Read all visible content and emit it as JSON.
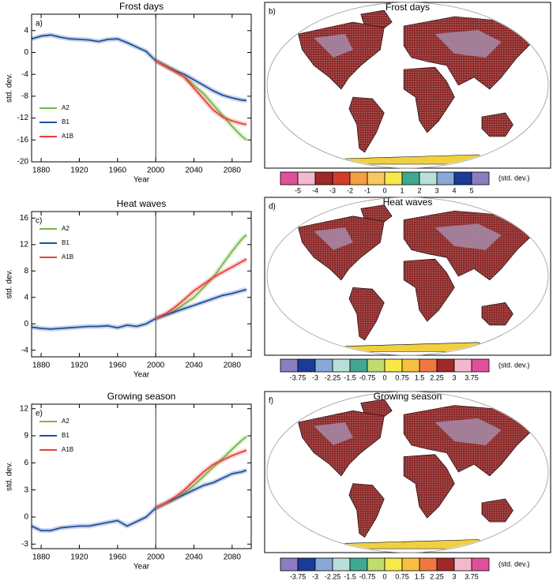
{
  "chart_data": [
    {
      "type": "line",
      "title": "Frost days",
      "panel_label": "a)",
      "ylabel": "std. dev.",
      "xlabel": "Year",
      "x": [
        1870,
        1880,
        1890,
        1900,
        1910,
        1920,
        1930,
        1940,
        1950,
        1960,
        1970,
        1980,
        1990,
        2000,
        2010,
        2020,
        2030,
        2040,
        2050,
        2060,
        2070,
        2080,
        2090,
        2095
      ],
      "xlim": [
        1870,
        2100
      ],
      "xticks": [
        1880,
        1920,
        1960,
        2000,
        2040,
        2080
      ],
      "ylim": [
        -20,
        7
      ],
      "yticks": [
        -20,
        -16,
        -12,
        -8,
        -4,
        0,
        4
      ],
      "vline": 2000,
      "legend": "lower left",
      "series": [
        {
          "name": "A2",
          "color": "#7ab648",
          "values": [
            null,
            null,
            null,
            null,
            null,
            null,
            null,
            null,
            null,
            null,
            null,
            null,
            null,
            -1.5,
            -2.3,
            -3.3,
            -4.5,
            -6,
            -7.5,
            -9.5,
            -11.5,
            -13.5,
            -15.3,
            -16
          ]
        },
        {
          "name": "B1",
          "color": "#1f4fa0",
          "values": [
            2.5,
            3,
            3.2,
            2.8,
            2.5,
            2.4,
            2.3,
            2,
            2.4,
            2.5,
            1.8,
            1,
            0.2,
            -1.5,
            -2.5,
            -3.3,
            -4,
            -5,
            -6,
            -7,
            -7.8,
            -8.3,
            -8.7,
            -8.8
          ]
        },
        {
          "name": "A1B",
          "color": "#e8403a",
          "values": [
            null,
            null,
            null,
            null,
            null,
            null,
            null,
            null,
            null,
            null,
            null,
            null,
            null,
            -1.5,
            -2.5,
            -3.5,
            -4.5,
            -6.5,
            -8.5,
            -10.5,
            -11.8,
            -12.5,
            -13,
            -13.2
          ]
        }
      ]
    },
    {
      "type": "map",
      "title": "Frost days",
      "panel_label": "b)",
      "unit": "(std. dev.)",
      "colorbar_ticks": [
        -5,
        -4,
        -3,
        -2,
        -1,
        0,
        1,
        2,
        3,
        4,
        5
      ],
      "colorbar_colors": [
        "#e0509a",
        "#f4b8cc",
        "#a02828",
        "#d23c2c",
        "#f4a040",
        "#f8c860",
        "#f8e848",
        "#40a890",
        "#b8e0d8",
        "#88a8d8",
        "#1a3c98",
        "#8c7cc0"
      ]
    },
    {
      "type": "line",
      "title": "Heat waves",
      "panel_label": "c)",
      "ylabel": "std. dev.",
      "xlabel": "Year",
      "x": [
        1870,
        1880,
        1890,
        1900,
        1910,
        1920,
        1930,
        1940,
        1950,
        1960,
        1970,
        1980,
        1990,
        2000,
        2010,
        2020,
        2030,
        2040,
        2050,
        2060,
        2070,
        2080,
        2090,
        2095
      ],
      "xlim": [
        1870,
        2100
      ],
      "xticks": [
        1880,
        1920,
        1960,
        2000,
        2040,
        2080
      ],
      "ylim": [
        -5,
        17
      ],
      "yticks": [
        -4,
        0,
        4,
        8,
        12,
        16
      ],
      "vline": 2000,
      "legend": "upper left",
      "series": [
        {
          "name": "A2",
          "color": "#7ab648",
          "values": [
            null,
            null,
            null,
            null,
            null,
            null,
            null,
            null,
            null,
            null,
            null,
            null,
            null,
            0.8,
            1.3,
            2,
            3,
            4,
            5.5,
            7,
            9,
            11,
            12.8,
            13.5
          ]
        },
        {
          "name": "B1",
          "color": "#1f4fa0",
          "values": [
            -0.5,
            -0.7,
            -0.8,
            -0.7,
            -0.6,
            -0.5,
            -0.4,
            -0.4,
            -0.3,
            -0.6,
            -0.2,
            -0.4,
            0,
            0.8,
            1.3,
            1.8,
            2.3,
            2.8,
            3.3,
            3.8,
            4.3,
            4.6,
            5,
            5.2
          ]
        },
        {
          "name": "A1B",
          "color": "#e8403a",
          "values": [
            null,
            null,
            null,
            null,
            null,
            null,
            null,
            null,
            null,
            null,
            null,
            null,
            null,
            0.8,
            1.5,
            2.5,
            3.7,
            5,
            6,
            7,
            7.8,
            8.6,
            9.4,
            9.8
          ]
        }
      ]
    },
    {
      "type": "map",
      "title": "Heat waves",
      "panel_label": "d)",
      "unit": "(std. dev.)",
      "colorbar_ticks": [
        -3.75,
        -3,
        -2.25,
        -1.5,
        -0.75,
        0,
        0.75,
        1.5,
        2.25,
        3,
        3.75
      ],
      "colorbar_colors": [
        "#8c7cc0",
        "#1a3c98",
        "#88a8d8",
        "#b8e0d8",
        "#40a890",
        "#c0dc70",
        "#f8e848",
        "#f8c040",
        "#f07840",
        "#a02828",
        "#f4b8cc",
        "#e0509a"
      ]
    },
    {
      "type": "line",
      "title": "Growing season",
      "panel_label": "e)",
      "ylabel": "std. dev.",
      "xlabel": "Year",
      "x": [
        1870,
        1880,
        1890,
        1900,
        1910,
        1920,
        1930,
        1940,
        1950,
        1960,
        1970,
        1980,
        1990,
        2000,
        2010,
        2020,
        2030,
        2040,
        2050,
        2060,
        2070,
        2080,
        2090,
        2095
      ],
      "xlim": [
        1870,
        2100
      ],
      "xticks": [
        1880,
        1920,
        1960,
        2000,
        2040,
        2080
      ],
      "ylim": [
        -3.5,
        12.5
      ],
      "yticks": [
        -3,
        0,
        3,
        6,
        9,
        12
      ],
      "vline": 2000,
      "legend": "upper left",
      "series": [
        {
          "name": "A2",
          "color": "#7ab648",
          "values": [
            null,
            null,
            null,
            null,
            null,
            null,
            null,
            null,
            null,
            null,
            null,
            null,
            null,
            1,
            1.5,
            2,
            2.7,
            3.5,
            4.5,
            5.5,
            6.5,
            7.5,
            8.5,
            8.9
          ]
        },
        {
          "name": "B1",
          "color": "#1f4fa0",
          "values": [
            -1,
            -1.5,
            -1.5,
            -1.2,
            -1.1,
            -1,
            -1,
            -0.8,
            -0.6,
            -0.4,
            -1,
            -0.5,
            0,
            1,
            1.5,
            2,
            2.5,
            3,
            3.5,
            3.8,
            4.3,
            4.8,
            5,
            5.2
          ]
        },
        {
          "name": "A1B",
          "color": "#e8403a",
          "values": [
            null,
            null,
            null,
            null,
            null,
            null,
            null,
            null,
            null,
            null,
            null,
            null,
            null,
            1,
            1.5,
            2.2,
            3,
            4,
            5,
            5.8,
            6.3,
            6.8,
            7.2,
            7.4
          ]
        }
      ]
    },
    {
      "type": "map",
      "title": "Growing season",
      "panel_label": "f)",
      "unit": "(std. dev.)",
      "colorbar_ticks": [
        -3.75,
        -3,
        -2.25,
        -1.5,
        -0.75,
        0,
        0.75,
        1.5,
        2.25,
        3,
        3.75
      ],
      "colorbar_colors": [
        "#8c7cc0",
        "#1a3c98",
        "#88a8d8",
        "#b8e0d8",
        "#40a890",
        "#c0dc70",
        "#f8e848",
        "#f8c040",
        "#f07840",
        "#a02828",
        "#f4b8cc",
        "#e0509a"
      ]
    }
  ]
}
